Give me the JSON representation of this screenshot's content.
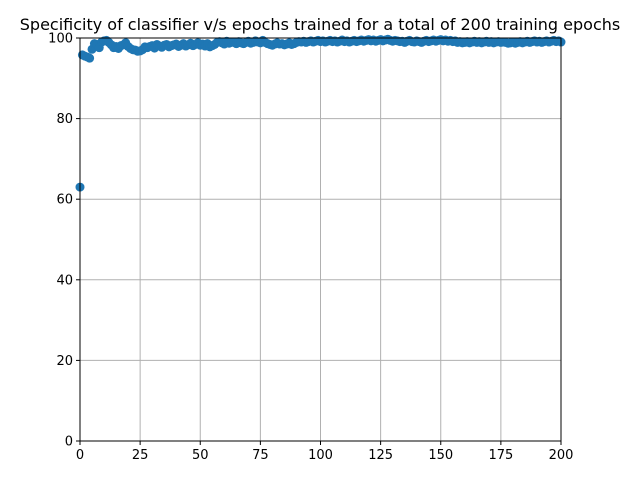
{
  "chart_data": {
    "type": "scatter",
    "title": "Specificity of classifier v/s epochs trained for a total of 200 training epochs",
    "xlabel": "",
    "ylabel": "",
    "xlim": [
      0,
      200
    ],
    "ylim": [
      0,
      100
    ],
    "xticks": [
      0,
      25,
      50,
      75,
      100,
      125,
      150,
      175,
      200
    ],
    "yticks": [
      0,
      20,
      40,
      60,
      80,
      100
    ],
    "grid": true,
    "series": [
      {
        "color": "#1f77b4",
        "marker": "circle",
        "x": [
          0,
          1,
          2,
          3,
          4,
          5,
          6,
          7,
          8,
          9,
          10,
          11,
          12,
          13,
          14,
          15,
          16,
          17,
          18,
          19,
          20,
          21,
          22,
          23,
          24,
          25,
          26,
          27,
          28,
          29,
          30,
          31,
          32,
          33,
          34,
          35,
          36,
          37,
          38,
          39,
          40,
          41,
          42,
          43,
          44,
          45,
          46,
          47,
          48,
          49,
          50,
          51,
          52,
          53,
          54,
          55,
          56,
          57,
          58,
          59,
          60,
          61,
          62,
          63,
          64,
          65,
          66,
          67,
          68,
          69,
          70,
          71,
          72,
          73,
          74,
          75,
          76,
          77,
          78,
          79,
          80,
          81,
          82,
          83,
          84,
          85,
          86,
          87,
          88,
          89,
          90,
          91,
          92,
          93,
          94,
          95,
          96,
          97,
          98,
          99,
          100,
          101,
          102,
          103,
          104,
          105,
          106,
          107,
          108,
          109,
          110,
          111,
          112,
          113,
          114,
          115,
          116,
          117,
          118,
          119,
          120,
          121,
          122,
          123,
          124,
          125,
          126,
          127,
          128,
          129,
          130,
          131,
          132,
          133,
          134,
          135,
          136,
          137,
          138,
          139,
          140,
          141,
          142,
          143,
          144,
          145,
          146,
          147,
          148,
          149,
          150,
          151,
          152,
          153,
          154,
          155,
          156,
          157,
          158,
          159,
          160,
          161,
          162,
          163,
          164,
          165,
          166,
          167,
          168,
          169,
          170,
          171,
          172,
          173,
          174,
          175,
          176,
          177,
          178,
          179,
          180,
          181,
          182,
          183,
          184,
          185,
          186,
          187,
          188,
          189,
          190,
          191,
          192,
          193,
          194,
          195,
          196,
          197,
          198,
          199,
          200
        ],
        "y": [
          63.0,
          95.8,
          95.5,
          95.3,
          95.0,
          97.2,
          98.6,
          98.4,
          97.6,
          99.0,
          99.3,
          99.4,
          98.9,
          98.3,
          97.6,
          97.9,
          97.4,
          98.1,
          98.3,
          98.8,
          97.9,
          97.4,
          97.1,
          97.0,
          96.7,
          96.8,
          97.1,
          97.8,
          97.6,
          97.9,
          98.1,
          97.5,
          98.4,
          98.0,
          97.7,
          98.2,
          98.4,
          97.8,
          98.1,
          98.3,
          98.5,
          97.9,
          98.2,
          98.6,
          98.0,
          98.3,
          98.7,
          98.1,
          98.4,
          98.8,
          98.2,
          98.5,
          98.0,
          98.6,
          97.8,
          98.1,
          98.4,
          98.9,
          99.1,
          98.8,
          98.5,
          99.2,
          98.7,
          98.9,
          99.0,
          98.6,
          99.1,
          98.8,
          98.6,
          98.9,
          99.2,
          98.7,
          98.9,
          99.3,
          99.0,
          98.8,
          99.4,
          98.9,
          98.6,
          98.4,
          98.2,
          98.5,
          98.8,
          98.5,
          98.6,
          98.3,
          98.5,
          98.8,
          98.4,
          98.6,
          98.9,
          99.1,
          99.0,
          99.2,
          98.9,
          99.1,
          99.3,
          99.0,
          99.2,
          99.4,
          99.1,
          99.3,
          99.0,
          99.2,
          99.4,
          99.1,
          99.3,
          99.0,
          99.2,
          99.5,
          99.1,
          99.3,
          99.0,
          99.2,
          99.4,
          99.1,
          99.3,
          99.5,
          99.2,
          99.4,
          99.6,
          99.3,
          99.5,
          99.2,
          99.4,
          99.6,
          99.3,
          99.5,
          99.7,
          99.4,
          99.2,
          99.4,
          99.3,
          99.1,
          99.2,
          98.9,
          99.2,
          99.4,
          99.1,
          99.0,
          99.3,
          99.1,
          98.9,
          99.2,
          99.4,
          99.1,
          99.3,
          99.5,
          99.2,
          99.4,
          99.6,
          99.3,
          99.5,
          99.2,
          99.4,
          99.1,
          99.3,
          98.9,
          99.1,
          98.8,
          98.9,
          99.1,
          98.8,
          99.0,
          99.2,
          98.9,
          99.1,
          98.8,
          99.0,
          99.2,
          98.9,
          99.1,
          98.8,
          99.0,
          99.1,
          98.9,
          99.0,
          98.9,
          98.7,
          98.8,
          99.0,
          98.7,
          98.9,
          99.1,
          98.8,
          99.0,
          99.2,
          98.9,
          99.1,
          99.3,
          99.0,
          99.2,
          98.9,
          99.1,
          99.3,
          99.0,
          99.2,
          99.4,
          99.1,
          99.3,
          99.0
        ]
      }
    ]
  }
}
